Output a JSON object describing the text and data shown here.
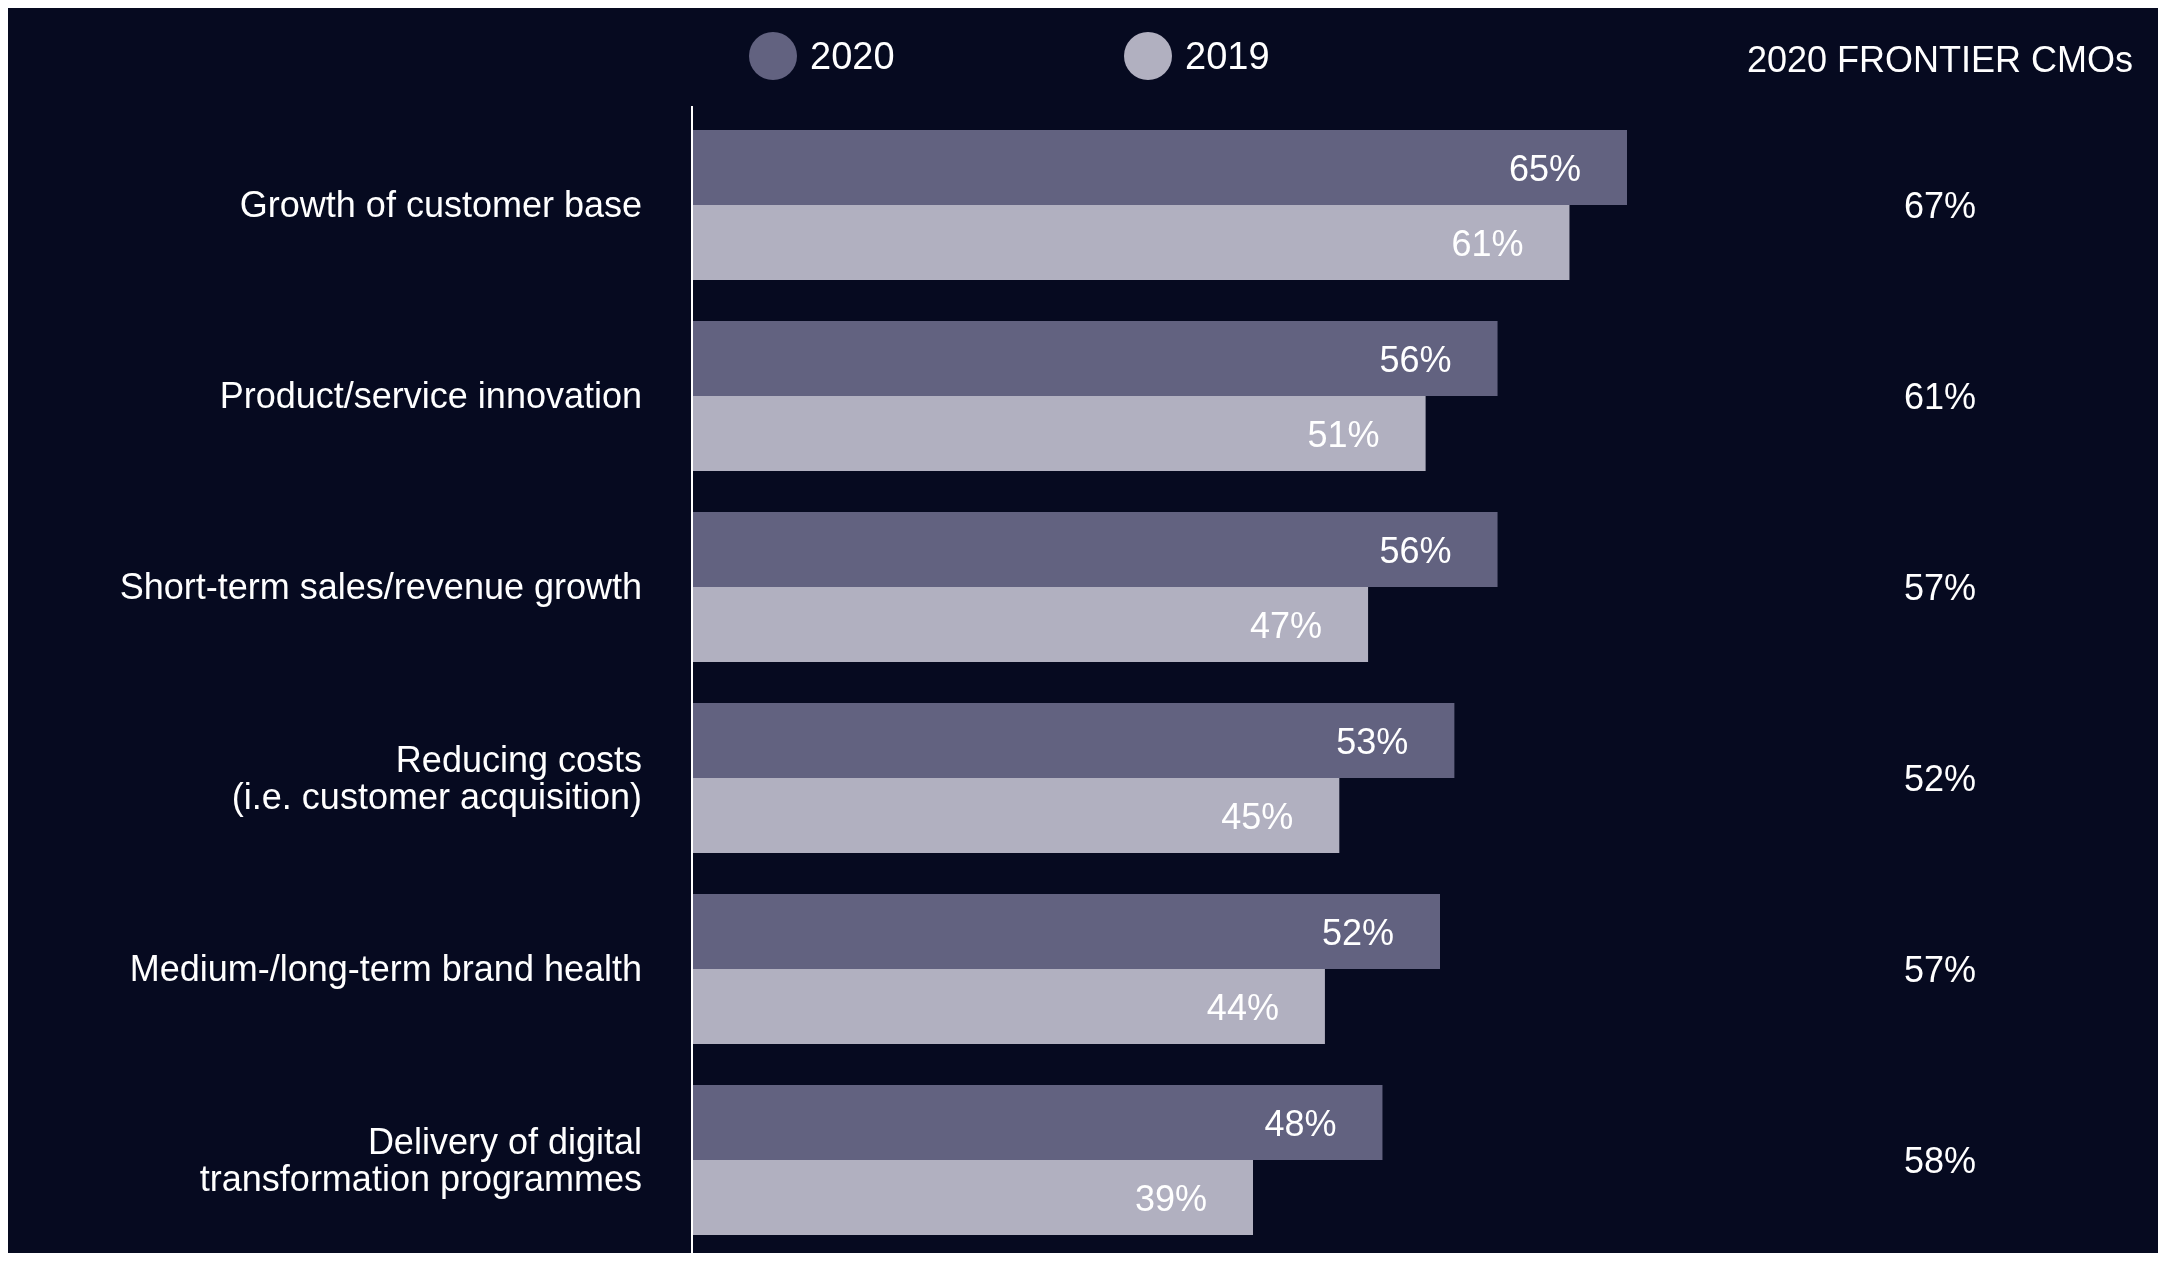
{
  "chart_data": [
    {
      "type": "bar",
      "orientation": "horizontal",
      "categories": [
        "Growth of customer base",
        "Product/service innovation",
        "Short-term sales/revenue growth",
        "Reducing costs\n(i.e. customer acquisition)",
        "Medium-/long-term brand health",
        "Delivery of digital\ntransformation programmes"
      ],
      "series": [
        {
          "name": "2020",
          "color": "#626280",
          "values": [
            65,
            56,
            56,
            53,
            52,
            48
          ],
          "value_labels": [
            "65%",
            "56%",
            "56%",
            "53%",
            "52%",
            "48%"
          ]
        },
        {
          "name": "2019",
          "color": "#b1b0c0",
          "values": [
            61,
            51,
            47,
            45,
            44,
            39
          ],
          "value_labels": [
            "61%",
            "51%",
            "47%",
            "45%",
            "44%",
            "39%"
          ]
        }
      ],
      "xlim": [
        0,
        65
      ],
      "legend": "top",
      "tick_labels": "y"
    },
    {
      "type": "other",
      "title": "2020 FRONTIER CMOs",
      "annotations": [
        "67%",
        "61%",
        "57%",
        "52%",
        "57%",
        "58%"
      ]
    }
  ]
}
